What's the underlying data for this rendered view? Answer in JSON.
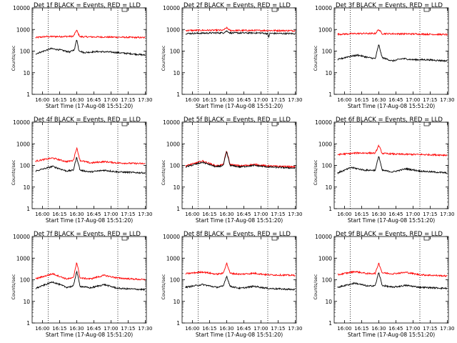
{
  "chart_data": [
    {
      "type": "line",
      "title": "Det 1f BLACK = Events, RED = LLD",
      "xlabel": "Start Time (17-Aug-08 15:51:20)",
      "ylabel": "Counts/sec",
      "x_ticks": [
        "16:00",
        "16:15",
        "16:30",
        "16:45",
        "17:00",
        "17:15",
        "17:30"
      ],
      "y_ticks": [
        "1",
        "10",
        "100",
        "1000",
        "10000"
      ],
      "y_scale": "log",
      "ylim": [
        1,
        10000
      ],
      "xlim": [
        "15:51",
        "17:31"
      ],
      "dotted_x": [
        "16:05",
        "17:06"
      ],
      "series": [
        {
          "color": "#ff0000",
          "values": [
            [
              15.9,
              420
            ],
            [
              16.05,
              470
            ],
            [
              16.25,
              470
            ],
            [
              16.45,
              480
            ],
            [
              16.48,
              700
            ],
            [
              16.5,
              950
            ],
            [
              16.52,
              650
            ],
            [
              16.55,
              460
            ],
            [
              16.8,
              450
            ],
            [
              17.1,
              440
            ],
            [
              17.5,
              420
            ]
          ]
        },
        {
          "color": "#000000",
          "values": [
            [
              15.9,
              75
            ],
            [
              16.0,
              95
            ],
            [
              16.12,
              130
            ],
            [
              16.25,
              115
            ],
            [
              16.4,
              90
            ],
            [
              16.47,
              120
            ],
            [
              16.5,
              380
            ],
            [
              16.53,
              110
            ],
            [
              16.6,
              85
            ],
            [
              16.8,
              95
            ],
            [
              17.0,
              90
            ],
            [
              17.3,
              75
            ],
            [
              17.5,
              65
            ]
          ]
        }
      ]
    },
    {
      "type": "line",
      "title": "Det 2f BLACK = Events, RED = LLD",
      "xlabel": "Start Time (17-Aug-08 15:51:20)",
      "ylabel": "Counts/sec",
      "x_ticks": [
        "16:00",
        "16:15",
        "16:30",
        "16:45",
        "17:00",
        "17:15",
        "17:30"
      ],
      "y_ticks": [
        "1",
        "10",
        "100",
        "1000",
        "10000"
      ],
      "y_scale": "log",
      "ylim": [
        1,
        10000
      ],
      "xlim": [
        "15:51",
        "17:31"
      ],
      "dotted_x": [
        "16:05",
        "17:06"
      ],
      "series": [
        {
          "color": "#ff0000",
          "values": [
            [
              15.9,
              900
            ],
            [
              16.2,
              920
            ],
            [
              16.45,
              920
            ],
            [
              16.5,
              1200
            ],
            [
              16.55,
              900
            ],
            [
              17.0,
              900
            ],
            [
              17.5,
              880
            ]
          ]
        },
        {
          "color": "#000000",
          "values": [
            [
              15.9,
              650
            ],
            [
              16.2,
              680
            ],
            [
              16.45,
              700
            ],
            [
              16.5,
              850
            ],
            [
              16.55,
              690
            ],
            [
              17.0,
              690
            ],
            [
              17.1,
              640
            ],
            [
              17.11,
              420
            ],
            [
              17.13,
              660
            ],
            [
              17.5,
              640
            ]
          ]
        }
      ]
    },
    {
      "type": "line",
      "title": "Det 3f BLACK = Events, RED = LLD",
      "xlabel": "Start Time (17-Aug-08 15:51:20)",
      "ylabel": "Counts/sec",
      "x_ticks": [
        "16:00",
        "16:15",
        "16:30",
        "16:45",
        "17:00",
        "17:15",
        "17:30"
      ],
      "y_ticks": [
        "1",
        "10",
        "100",
        "1000",
        "10000"
      ],
      "y_scale": "log",
      "ylim": [
        1,
        10000
      ],
      "xlim": [
        "15:51",
        "17:31"
      ],
      "dotted_x": [
        "16:05",
        "17:06"
      ],
      "series": [
        {
          "color": "#ff0000",
          "values": [
            [
              15.9,
              600
            ],
            [
              16.2,
              650
            ],
            [
              16.45,
              650
            ],
            [
              16.5,
              1000
            ],
            [
              16.55,
              640
            ],
            [
              17.0,
              620
            ],
            [
              17.5,
              580
            ]
          ]
        },
        {
          "color": "#000000",
          "values": [
            [
              15.9,
              40
            ],
            [
              16.05,
              55
            ],
            [
              16.2,
              65
            ],
            [
              16.35,
              50
            ],
            [
              16.45,
              45
            ],
            [
              16.5,
              200
            ],
            [
              16.55,
              50
            ],
            [
              16.7,
              35
            ],
            [
              16.85,
              45
            ],
            [
              17.0,
              40
            ],
            [
              17.2,
              40
            ],
            [
              17.5,
              35
            ]
          ]
        }
      ]
    },
    {
      "type": "line",
      "title": "Det 4f BLACK = Events, RED = LLD",
      "xlabel": "Start Time (17-Aug-08 15:51:20)",
      "ylabel": "Counts/sec",
      "x_ticks": [
        "16:00",
        "16:15",
        "16:30",
        "16:45",
        "17:00",
        "17:15",
        "17:30"
      ],
      "y_ticks": [
        "1",
        "10",
        "100",
        "1000",
        "10000"
      ],
      "y_scale": "log",
      "ylim": [
        1,
        10000
      ],
      "xlim": [
        "15:51",
        "17:31"
      ],
      "dotted_x": [
        "16:05",
        "17:06"
      ],
      "series": [
        {
          "color": "#ff0000",
          "values": [
            [
              15.9,
              160
            ],
            [
              16.15,
              220
            ],
            [
              16.35,
              150
            ],
            [
              16.45,
              170
            ],
            [
              16.5,
              650
            ],
            [
              16.55,
              170
            ],
            [
              16.7,
              130
            ],
            [
              16.9,
              150
            ],
            [
              17.1,
              130
            ],
            [
              17.5,
              120
            ]
          ]
        },
        {
          "color": "#000000",
          "values": [
            [
              15.9,
              55
            ],
            [
              16.15,
              90
            ],
            [
              16.35,
              55
            ],
            [
              16.45,
              60
            ],
            [
              16.5,
              240
            ],
            [
              16.55,
              60
            ],
            [
              16.7,
              50
            ],
            [
              16.9,
              60
            ],
            [
              17.1,
              50
            ],
            [
              17.5,
              45
            ]
          ]
        }
      ]
    },
    {
      "type": "line",
      "title": "Det 5f BLACK = Events, RED = LLD",
      "xlabel": "Start Time (17-Aug-08 15:51:20)",
      "ylabel": "Counts/sec",
      "x_ticks": [
        "16:00",
        "16:15",
        "16:30",
        "16:45",
        "17:00",
        "17:15",
        "17:30"
      ],
      "y_ticks": [
        "1",
        "10",
        "100",
        "1000",
        "10000"
      ],
      "y_scale": "log",
      "ylim": [
        1,
        10000
      ],
      "xlim": [
        "15:51",
        "17:31"
      ],
      "dotted_x": [
        "16:05",
        "17:06"
      ],
      "series": [
        {
          "color": "#ff0000",
          "values": [
            [
              15.9,
              95
            ],
            [
              16.15,
              160
            ],
            [
              16.35,
              95
            ],
            [
              16.45,
              110
            ],
            [
              16.5,
              480
            ],
            [
              16.55,
              110
            ],
            [
              16.7,
              95
            ],
            [
              16.9,
              110
            ],
            [
              17.1,
              95
            ],
            [
              17.5,
              85
            ]
          ]
        },
        {
          "color": "#000000",
          "values": [
            [
              15.9,
              85
            ],
            [
              16.15,
              140
            ],
            [
              16.35,
              85
            ],
            [
              16.45,
              100
            ],
            [
              16.5,
              430
            ],
            [
              16.55,
              100
            ],
            [
              16.7,
              85
            ],
            [
              16.9,
              100
            ],
            [
              17.1,
              85
            ],
            [
              17.5,
              75
            ]
          ]
        }
      ]
    },
    {
      "type": "line",
      "title": "Det 6f BLACK = Events, RED = LLD",
      "xlabel": "Start Time (17-Aug-08 15:51:20)",
      "ylabel": "Counts/sec",
      "x_ticks": [
        "16:00",
        "16:15",
        "16:30",
        "16:45",
        "17:00",
        "17:15",
        "17:30"
      ],
      "y_ticks": [
        "1",
        "10",
        "100",
        "1000",
        "10000"
      ],
      "y_scale": "log",
      "ylim": [
        1,
        10000
      ],
      "xlim": [
        "15:51",
        "17:31"
      ],
      "dotted_x": [
        "16:05",
        "17:06"
      ],
      "series": [
        {
          "color": "#ff0000",
          "values": [
            [
              15.9,
              320
            ],
            [
              16.2,
              380
            ],
            [
              16.45,
              370
            ],
            [
              16.5,
              850
            ],
            [
              16.55,
              360
            ],
            [
              16.8,
              330
            ],
            [
              17.1,
              320
            ],
            [
              17.5,
              300
            ]
          ]
        },
        {
          "color": "#000000",
          "values": [
            [
              15.9,
              45
            ],
            [
              16.1,
              80
            ],
            [
              16.3,
              60
            ],
            [
              16.45,
              60
            ],
            [
              16.5,
              280
            ],
            [
              16.55,
              60
            ],
            [
              16.7,
              50
            ],
            [
              16.9,
              70
            ],
            [
              17.1,
              55
            ],
            [
              17.5,
              45
            ]
          ]
        }
      ]
    },
    {
      "type": "line",
      "title": "Det 7f BLACK = Events, RED = LLD",
      "xlabel": "Start Time (17-Aug-08 15:51:20)",
      "ylabel": "Counts/sec",
      "x_ticks": [
        "16:00",
        "16:15",
        "16:30",
        "16:45",
        "17:00",
        "17:15",
        "17:30"
      ],
      "y_ticks": [
        "1",
        "10",
        "100",
        "1000",
        "10000"
      ],
      "y_scale": "log",
      "ylim": [
        1,
        10000
      ],
      "xlim": [
        "15:51",
        "17:31"
      ],
      "dotted_x": [
        "16:05",
        "17:06"
      ],
      "series": [
        {
          "color": "#ff0000",
          "values": [
            [
              15.9,
              110
            ],
            [
              16.15,
              190
            ],
            [
              16.35,
              110
            ],
            [
              16.45,
              120
            ],
            [
              16.5,
              650
            ],
            [
              16.55,
              120
            ],
            [
              16.7,
              110
            ],
            [
              16.9,
              160
            ],
            [
              17.1,
              120
            ],
            [
              17.5,
              100
            ]
          ]
        },
        {
          "color": "#000000",
          "values": [
            [
              15.9,
              40
            ],
            [
              16.15,
              80
            ],
            [
              16.35,
              45
            ],
            [
              16.45,
              50
            ],
            [
              16.5,
              250
            ],
            [
              16.55,
              50
            ],
            [
              16.7,
              42
            ],
            [
              16.9,
              60
            ],
            [
              17.1,
              40
            ],
            [
              17.5,
              35
            ]
          ]
        }
      ]
    },
    {
      "type": "line",
      "title": "Det 8f BLACK = Events, RED = LLD",
      "xlabel": "Start Time (17-Aug-08 15:51:20)",
      "ylabel": "Counts/sec",
      "x_ticks": [
        "16:00",
        "16:15",
        "16:30",
        "16:45",
        "17:00",
        "17:15",
        "17:30"
      ],
      "y_ticks": [
        "1",
        "10",
        "100",
        "1000",
        "10000"
      ],
      "y_scale": "log",
      "ylim": [
        1,
        10000
      ],
      "xlim": [
        "15:51",
        "17:31"
      ],
      "dotted_x": [
        "16:05",
        "17:06"
      ],
      "series": [
        {
          "color": "#ff0000",
          "values": [
            [
              15.9,
              190
            ],
            [
              16.15,
              230
            ],
            [
              16.35,
              180
            ],
            [
              16.45,
              200
            ],
            [
              16.5,
              600
            ],
            [
              16.55,
              200
            ],
            [
              16.7,
              180
            ],
            [
              16.9,
              200
            ],
            [
              17.1,
              170
            ],
            [
              17.5,
              160
            ]
          ]
        },
        {
          "color": "#000000",
          "values": [
            [
              15.9,
              45
            ],
            [
              16.15,
              60
            ],
            [
              16.35,
              45
            ],
            [
              16.45,
              50
            ],
            [
              16.5,
              150
            ],
            [
              16.55,
              50
            ],
            [
              16.7,
              40
            ],
            [
              16.9,
              50
            ],
            [
              17.1,
              40
            ],
            [
              17.5,
              35
            ]
          ]
        }
      ]
    },
    {
      "type": "line",
      "title": "Det 9f BLACK = Events, RED = LLD",
      "xlabel": "Start Time (17-Aug-08 15:51:20)",
      "ylabel": "Counts/sec",
      "x_ticks": [
        "16:00",
        "16:15",
        "16:30",
        "16:45",
        "17:00",
        "17:15",
        "17:30"
      ],
      "y_ticks": [
        "1",
        "10",
        "100",
        "1000",
        "10000"
      ],
      "y_scale": "log",
      "ylim": [
        1,
        10000
      ],
      "xlim": [
        "15:51",
        "17:31"
      ],
      "dotted_x": [
        "16:05",
        "17:06"
      ],
      "series": [
        {
          "color": "#ff0000",
          "values": [
            [
              15.9,
              170
            ],
            [
              16.15,
              240
            ],
            [
              16.35,
              190
            ],
            [
              16.45,
              200
            ],
            [
              16.5,
              600
            ],
            [
              16.55,
              210
            ],
            [
              16.7,
              190
            ],
            [
              16.9,
              220
            ],
            [
              17.1,
              170
            ],
            [
              17.5,
              150
            ]
          ]
        },
        {
          "color": "#000000",
          "values": [
            [
              15.9,
              45
            ],
            [
              16.15,
              70
            ],
            [
              16.35,
              50
            ],
            [
              16.45,
              55
            ],
            [
              16.5,
              220
            ],
            [
              16.55,
              55
            ],
            [
              16.7,
              45
            ],
            [
              16.9,
              55
            ],
            [
              17.1,
              45
            ],
            [
              17.5,
              40
            ]
          ]
        }
      ]
    }
  ]
}
